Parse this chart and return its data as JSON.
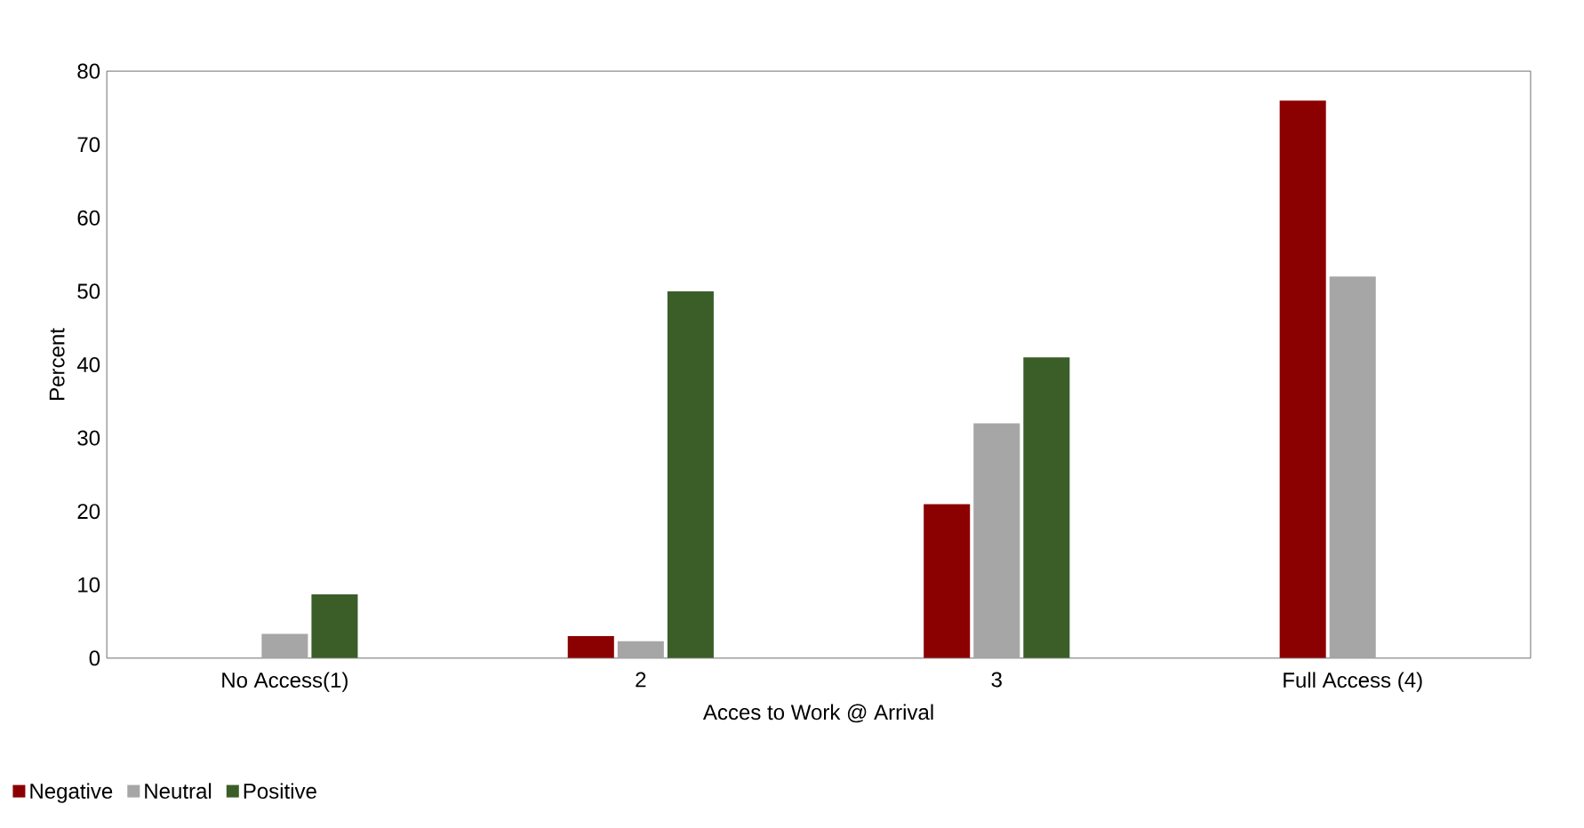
{
  "chart_data": {
    "type": "bar",
    "xlabel": "Acces to Work @ Arrival",
    "ylabel": "Percent",
    "categories": [
      "No Access(1)",
      "2",
      "3",
      "Full Access (4)"
    ],
    "series": [
      {
        "name": "Negative",
        "color": "#8b0000",
        "values": [
          0,
          3,
          21,
          76
        ]
      },
      {
        "name": "Neutral",
        "color": "#a6a6a6",
        "values": [
          3.3,
          2.3,
          32,
          52
        ]
      },
      {
        "name": "Positive",
        "color": "#3b5e29",
        "values": [
          8.7,
          50,
          41,
          0
        ]
      }
    ],
    "ylim": [
      0,
      80
    ],
    "yticks": [
      0,
      10,
      20,
      30,
      40,
      50,
      60,
      70,
      80
    ],
    "grid": false,
    "legend": "bottom left"
  }
}
